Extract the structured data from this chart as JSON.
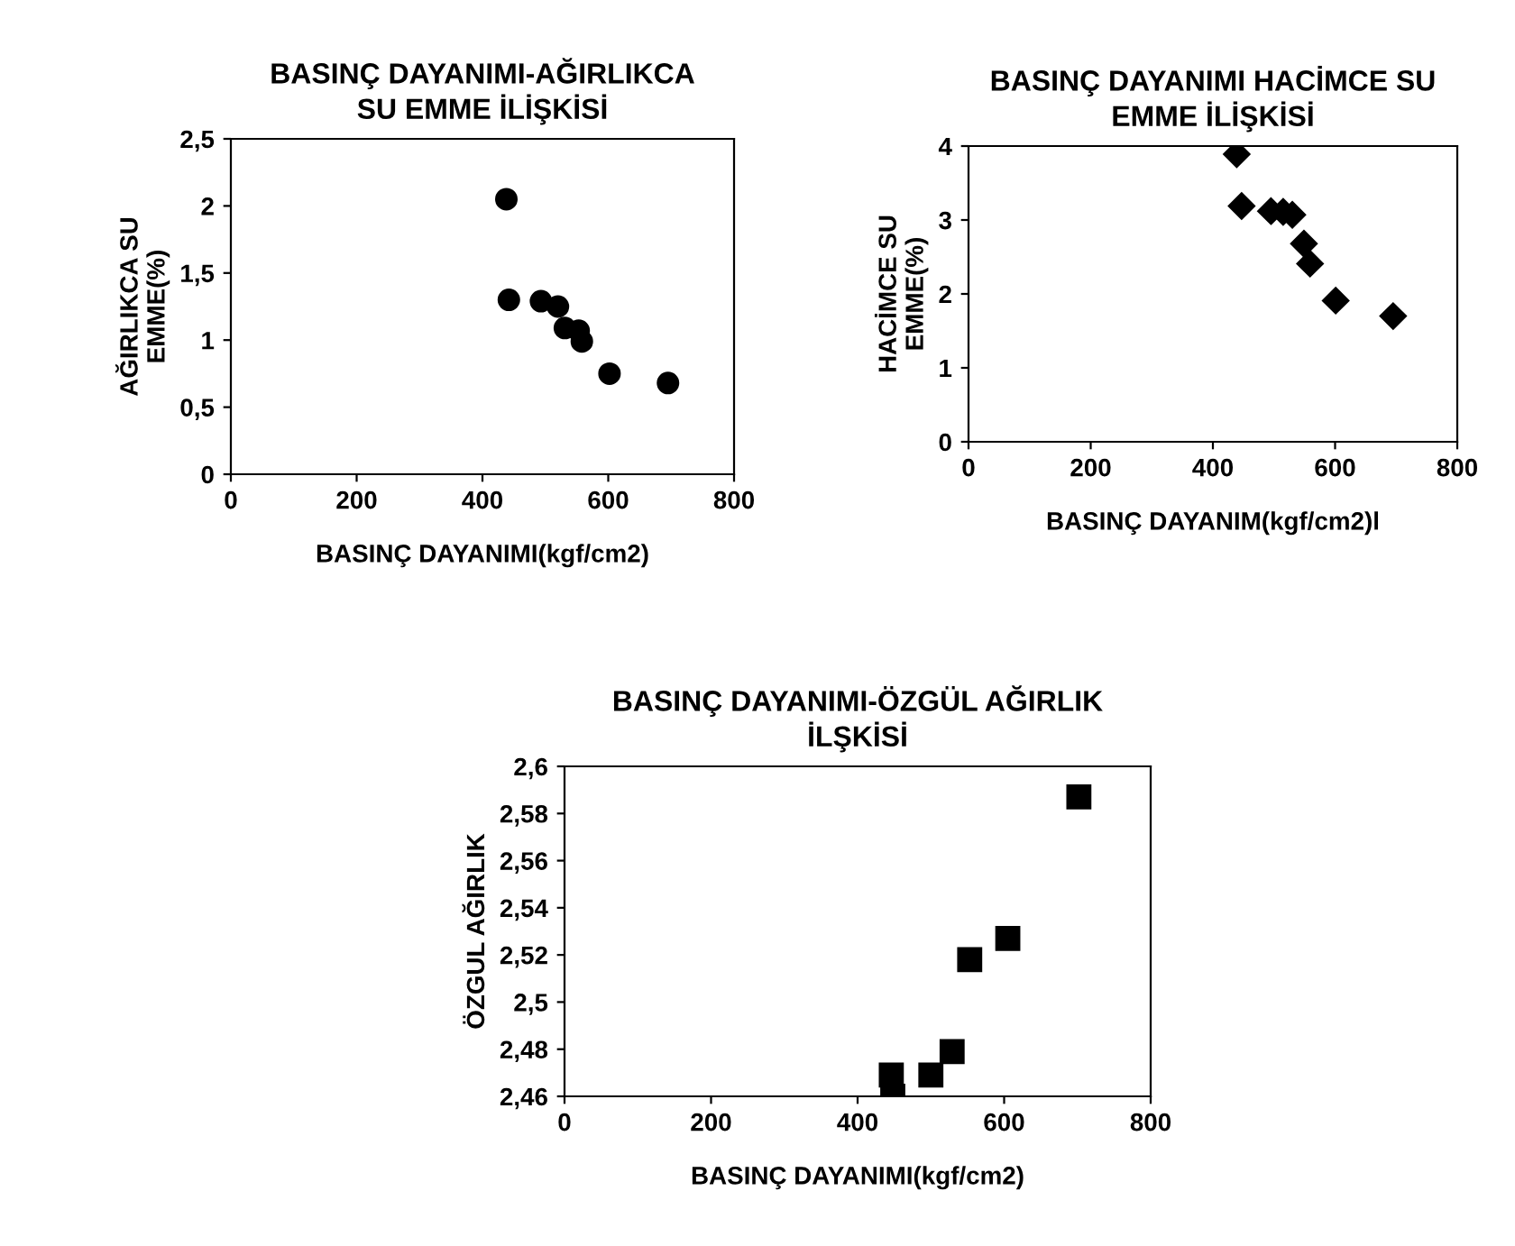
{
  "chart_data": [
    {
      "type": "scatter",
      "title": "BASINÇ DAYANIMI-AĞIRLIKCA\nSU EMME İLİŞKİSİ",
      "xlabel": "BASINÇ DAYANIMI(kgf/cm2)",
      "ylabel": "AĞIRLIKCA SU\nEMME(%)",
      "x": [
        438,
        442,
        493,
        520,
        531,
        553,
        558,
        602,
        695
      ],
      "values": [
        2.05,
        1.3,
        1.29,
        1.25,
        1.09,
        1.07,
        0.99,
        0.75,
        0.68
      ],
      "color": "#000000",
      "marker": "circle",
      "grid": false,
      "xlim": [
        0,
        800
      ],
      "xticks": [
        0,
        200,
        400,
        600,
        800
      ],
      "ylim": [
        0,
        2.5
      ],
      "yticks": [
        0,
        {
          "value": 0.5,
          "label": "0,5"
        },
        1,
        {
          "value": 1.5,
          "label": "1,5"
        },
        2,
        {
          "value": 2.5,
          "label": "2,5"
        }
      ]
    },
    {
      "type": "scatter",
      "title": "BASINÇ DAYANIMI HACİMCE SU\nEMME İLİŞKİSİ",
      "xlabel": "BASINÇ DAYANIM(kgf/cm2)l",
      "ylabel": "HACİMCE SU\nEMME(%)",
      "x": [
        439,
        447,
        495,
        515,
        530,
        549,
        559,
        601,
        695
      ],
      "values": [
        3.89,
        3.19,
        3.12,
        3.11,
        3.07,
        2.68,
        2.41,
        1.91,
        1.7
      ],
      "color": "#000000",
      "marker": "diamond",
      "grid": false,
      "xlim": [
        0,
        800
      ],
      "xticks": [
        0,
        200,
        400,
        600,
        800
      ],
      "ylim": [
        0,
        4
      ],
      "yticks": [
        0,
        1,
        2,
        3,
        4
      ]
    },
    {
      "type": "scatter",
      "title": "BASINÇ DAYANIMI-ÖZGÜL AĞIRLIK\nİLŞKİSİ",
      "xlabel": "BASINÇ DAYANIMI(kgf/cm2)",
      "ylabel": "ÖZGUL AĞIRLIK",
      "x": [
        446,
        448,
        500,
        529,
        553,
        605,
        702
      ],
      "values": [
        2.469,
        2.46,
        2.469,
        2.479,
        2.518,
        2.527,
        2.587
      ],
      "color": "#000000",
      "marker": "square",
      "grid": false,
      "xlim": [
        0,
        800
      ],
      "xticks": [
        0,
        200,
        400,
        600,
        800
      ],
      "ylim": [
        2.46,
        2.6
      ],
      "yticks": [
        {
          "value": 2.46,
          "label": "2,46"
        },
        {
          "value": 2.48,
          "label": "2,48"
        },
        {
          "value": 2.5,
          "label": "2,5"
        },
        {
          "value": 2.52,
          "label": "2,52"
        },
        {
          "value": 2.54,
          "label": "2,54"
        },
        {
          "value": 2.56,
          "label": "2,56"
        },
        {
          "value": 2.58,
          "label": "2,58"
        },
        {
          "value": 2.6,
          "label": "2,6"
        }
      ]
    }
  ]
}
